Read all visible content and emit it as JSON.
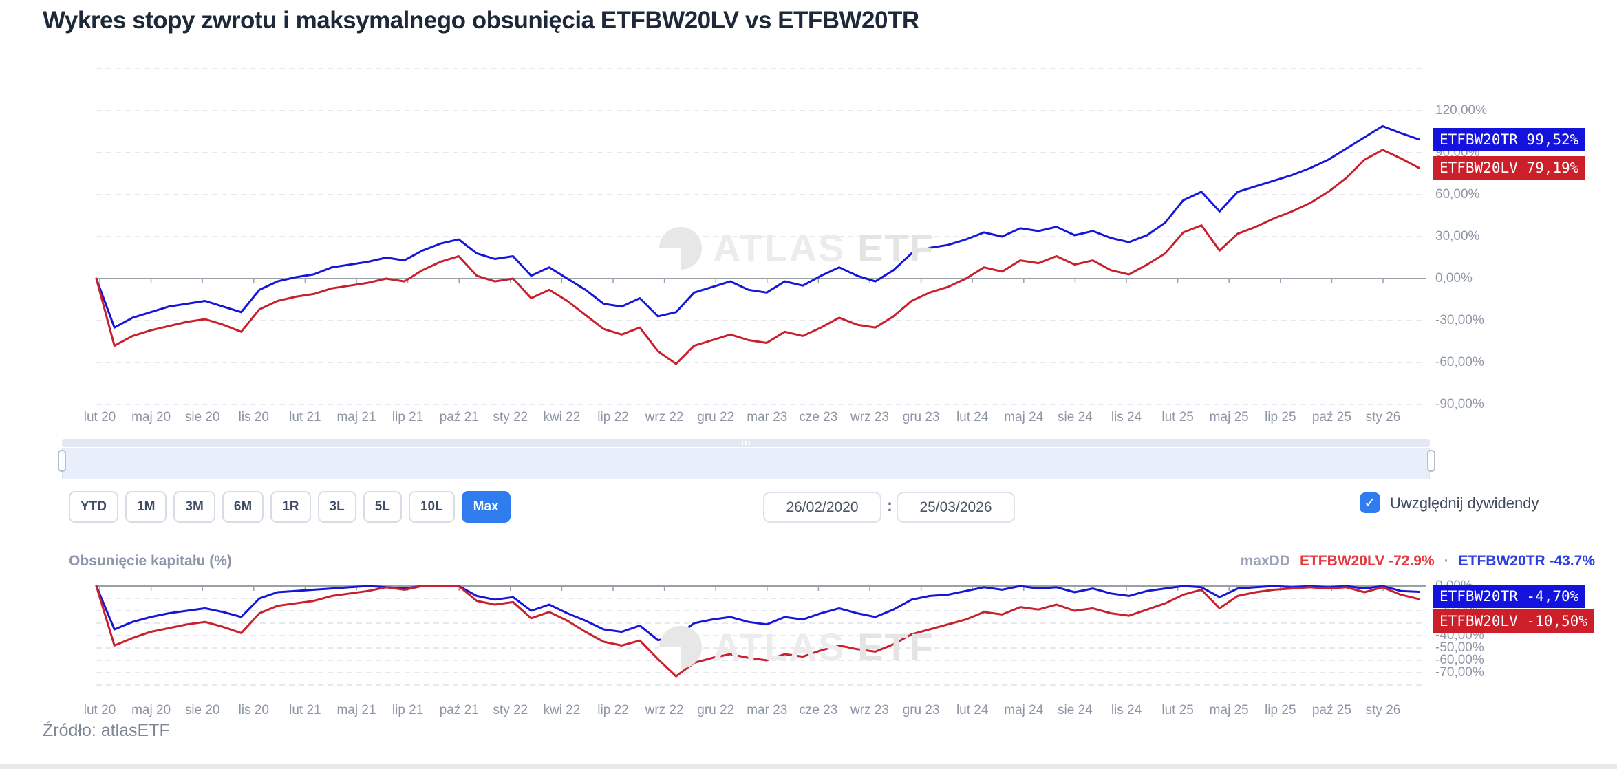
{
  "title": "Wykres stopy zwrotu i maksymalnego obsunięcia ETFBW20LV vs ETFBW20TR",
  "source": "Źródło: atlasETF",
  "watermark": {
    "atlas": "ATLAS",
    "etf": "ETF"
  },
  "toolbar": {
    "ranges": [
      "YTD",
      "1M",
      "3M",
      "6M",
      "1R",
      "3L",
      "5L",
      "10L",
      "Max"
    ],
    "active_range": "Max",
    "date_from": "26/02/2020",
    "date_separator": ":",
    "date_to": "25/03/2026",
    "dividends_label": "Uwzględnij dywidendy",
    "dividends_checked": true,
    "checkmark": "✓"
  },
  "drawdown_header": {
    "title": "Obsunięcie kapitału (%)",
    "maxdd_label": "maxDD",
    "lv_text": "ETFBW20LV -72.9%",
    "separator": "·",
    "tr_text": "ETFBW20TR -43.7%"
  },
  "colors": {
    "blue_line": "#1616d9",
    "red_line": "#c8202c",
    "badge_blue": "#1313dd",
    "badge_red": "#cc1f29",
    "accent": "#2e7ced",
    "grid": "#dfe2e8",
    "zero_line": "#9aa0a8",
    "nav_fill": "#ccd9f4",
    "nav_line": "#8fa9e6"
  },
  "chart_data": [
    {
      "type": "line",
      "name": "return-comparison",
      "x_labels": [
        "lut 20",
        "maj 20",
        "sie 20",
        "lis 20",
        "lut 21",
        "maj 21",
        "lip 21",
        "paź 21",
        "sty 22",
        "kwi 22",
        "lip 22",
        "wrz 22",
        "gru 22",
        "mar 23",
        "cze 23",
        "wrz 23",
        "gru 23",
        "lut 24",
        "maj 24",
        "sie 24",
        "lis 24",
        "lut 25",
        "maj 25",
        "lip 25",
        "paź 25",
        "sty 26"
      ],
      "ylim": [
        -90,
        150
      ],
      "y_ticks": [
        {
          "value": 120,
          "label": "120,00%"
        },
        {
          "value": 90,
          "label": "90,00%"
        },
        {
          "value": 60,
          "label": "60,00%"
        },
        {
          "value": 30,
          "label": "30,00%"
        },
        {
          "value": 0,
          "label": "0,00%"
        },
        {
          "value": -30,
          "label": "-30,00%"
        },
        {
          "value": -60,
          "label": "-60,00%"
        },
        {
          "value": -90,
          "label": "-90,00%"
        }
      ],
      "series": [
        {
          "name": "ETFBW20TR",
          "color": "#1616d9",
          "badge": "ETFBW20TR 99,52%",
          "badge_color": "#1313dd",
          "last_value": 99.52,
          "values": [
            0,
            -35,
            -28,
            -24,
            -20,
            -18,
            -16,
            -20,
            -24,
            -8,
            -2,
            1,
            3,
            8,
            10,
            12,
            15,
            13,
            20,
            25,
            28,
            18,
            14,
            16,
            2,
            8,
            0,
            -8,
            -18,
            -20,
            -14,
            -27,
            -24,
            -10,
            -6,
            -2,
            -8,
            -10,
            -2,
            -5,
            2,
            8,
            2,
            -2,
            6,
            18,
            22,
            24,
            28,
            33,
            30,
            36,
            34,
            37,
            31,
            34,
            29,
            26,
            31,
            40,
            56,
            62,
            48,
            62,
            66,
            70,
            74,
            79,
            85,
            93,
            101,
            109,
            104,
            99.52
          ]
        },
        {
          "name": "ETFBW20LV",
          "color": "#c8202c",
          "badge": "ETFBW20LV 79,19%",
          "badge_color": "#cc1f29",
          "last_value": 79.19,
          "values": [
            0,
            -48,
            -41,
            -37,
            -34,
            -31,
            -29,
            -33,
            -38,
            -22,
            -16,
            -13,
            -11,
            -7,
            -5,
            -3,
            0,
            -2,
            6,
            12,
            16,
            2,
            -2,
            0,
            -14,
            -8,
            -16,
            -26,
            -36,
            -40,
            -35,
            -52,
            -61,
            -48,
            -44,
            -40,
            -44,
            -46,
            -38,
            -41,
            -35,
            -28,
            -33,
            -35,
            -27,
            -16,
            -10,
            -6,
            0,
            8,
            5,
            13,
            11,
            16,
            10,
            13,
            6,
            3,
            10,
            18,
            33,
            38,
            20,
            32,
            37,
            43,
            48,
            54,
            62,
            72,
            85,
            92,
            86,
            79.19
          ]
        }
      ]
    },
    {
      "type": "line",
      "name": "drawdown",
      "x_labels": [
        "lut 20",
        "maj 20",
        "sie 20",
        "lis 20",
        "lut 21",
        "maj 21",
        "lip 21",
        "paź 21",
        "sty 22",
        "kwi 22",
        "lip 22",
        "wrz 22",
        "gru 22",
        "mar 23",
        "cze 23",
        "wrz 23",
        "gru 23",
        "lut 24",
        "maj 24",
        "sie 24",
        "lis 24",
        "lut 25",
        "maj 25",
        "lip 25",
        "paź 25",
        "sty 26"
      ],
      "ylim": [
        -80,
        0
      ],
      "y_ticks": [
        {
          "value": 0,
          "label": "0,00%"
        },
        {
          "value": -10,
          "label": "-10,00%"
        },
        {
          "value": -20,
          "label": "-20,00%"
        },
        {
          "value": -30,
          "label": "-30,00%"
        },
        {
          "value": -40,
          "label": "-40,00%"
        },
        {
          "value": -50,
          "label": "-50,00%"
        },
        {
          "value": -60,
          "label": "-60,00%"
        },
        {
          "value": -70,
          "label": "-70,00%"
        }
      ],
      "max_drawdown": {
        "ETFBW20LV": -72.9,
        "ETFBW20TR": -43.7
      },
      "series": [
        {
          "name": "ETFBW20TR",
          "color": "#1616d9",
          "badge": "ETFBW20TR  -4,70%",
          "badge_color": "#1313dd",
          "last_value": -4.7,
          "values": [
            0,
            -35,
            -29,
            -25,
            -22,
            -20,
            -18,
            -21,
            -25,
            -10,
            -5,
            -4,
            -3,
            -2,
            -1,
            0,
            -1,
            -2,
            0,
            0,
            0,
            -8,
            -11,
            -9,
            -20,
            -15,
            -22,
            -28,
            -35,
            -37,
            -32,
            -43.7,
            -41,
            -30,
            -27,
            -25,
            -29,
            -31,
            -25,
            -27,
            -22,
            -18,
            -22,
            -25,
            -19,
            -11,
            -8,
            -7,
            -4,
            -1,
            -3,
            0,
            -2,
            -1,
            -5,
            -2,
            -6,
            -8,
            -4,
            -2,
            0,
            -1,
            -9,
            -2,
            -1,
            0,
            -1,
            0,
            -1,
            0,
            -2,
            0,
            -4,
            -4.7
          ]
        },
        {
          "name": "ETFBW20LV",
          "color": "#c8202c",
          "badge": "ETFBW20LV -10,50%",
          "badge_color": "#cc1f29",
          "last_value": -10.5,
          "values": [
            0,
            -48,
            -42,
            -37,
            -34,
            -31,
            -29,
            -33,
            -38,
            -22,
            -16,
            -14,
            -12,
            -8,
            -6,
            -4,
            -1,
            -3,
            0,
            0,
            0,
            -12,
            -15,
            -13,
            -26,
            -21,
            -28,
            -37,
            -45,
            -48,
            -44,
            -59,
            -72.9,
            -62,
            -58,
            -55,
            -58,
            -60,
            -55,
            -57,
            -52,
            -48,
            -51,
            -53,
            -47,
            -39,
            -35,
            -31,
            -27,
            -21,
            -23,
            -17,
            -19,
            -15,
            -20,
            -18,
            -22,
            -24,
            -19,
            -14,
            -7,
            -3,
            -18,
            -8,
            -5,
            -3,
            -2,
            -1,
            -2,
            -1,
            -5,
            -1,
            -7,
            -10.5
          ]
        }
      ]
    }
  ]
}
